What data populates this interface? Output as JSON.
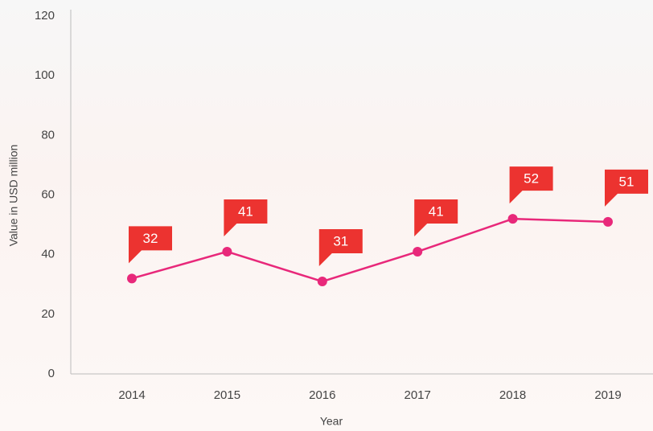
{
  "chart_data": {
    "type": "line",
    "x_label": "Year",
    "y_label": "Value in USD million",
    "categories": [
      "2014",
      "2015",
      "2016",
      "2017",
      "2018",
      "2019"
    ],
    "series": [
      {
        "name": "Value",
        "color": "#e8287a",
        "values": [
          32,
          41,
          31,
          41,
          52,
          51
        ]
      }
    ],
    "label_color": "#ec3330",
    "ylim": [
      0,
      120
    ],
    "yticks": [
      0,
      20,
      40,
      60,
      80,
      100,
      120
    ]
  }
}
